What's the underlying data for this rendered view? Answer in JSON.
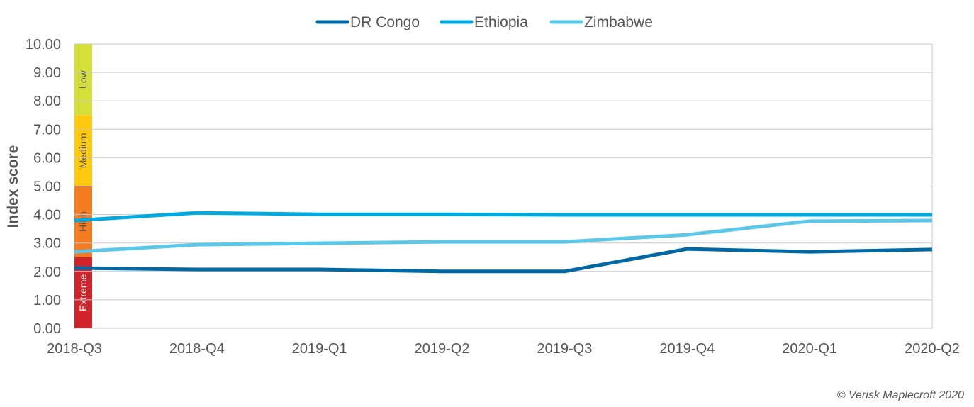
{
  "chart_data": {
    "type": "line",
    "title": "",
    "xlabel": "",
    "ylabel": "Index score",
    "ylim": [
      0,
      10
    ],
    "yticks": [
      "0.00",
      "1.00",
      "2.00",
      "3.00",
      "4.00",
      "5.00",
      "6.00",
      "7.00",
      "8.00",
      "9.00",
      "10.00"
    ],
    "grid": true,
    "legend_placement": "top",
    "categories": [
      "2018-Q3",
      "2018-Q4",
      "2019-Q1",
      "2019-Q2",
      "2019-Q3",
      "2019-Q4",
      "2020-Q1",
      "2020-Q2"
    ],
    "series": [
      {
        "name": "DR Congo",
        "color": "#0068a5",
        "values": [
          2.12,
          2.07,
          2.07,
          2.0,
          2.0,
          2.79,
          2.69,
          2.77
        ]
      },
      {
        "name": "Ethiopia",
        "color": "#00a9e0",
        "values": [
          3.79,
          4.06,
          4.01,
          4.01,
          3.99,
          3.99,
          3.99,
          3.99
        ]
      },
      {
        "name": "Zimbabwe",
        "color": "#5bc8ea",
        "values": [
          2.69,
          2.94,
          2.99,
          3.04,
          3.04,
          3.29,
          3.77,
          3.79
        ]
      }
    ],
    "risk_bands": [
      {
        "label": "Extreme",
        "from": 0,
        "to": 2.5,
        "color": "#d2232a"
      },
      {
        "label": "High",
        "from": 2.5,
        "to": 5,
        "color": "#f47b20"
      },
      {
        "label": "Medium",
        "from": 5,
        "to": 7.5,
        "color": "#ffc90e"
      },
      {
        "label": "Low",
        "from": 7.5,
        "to": 10,
        "color": "#d5df3a"
      }
    ]
  },
  "footer": {
    "copyright": "© Verisk Maplecroft 2020"
  }
}
